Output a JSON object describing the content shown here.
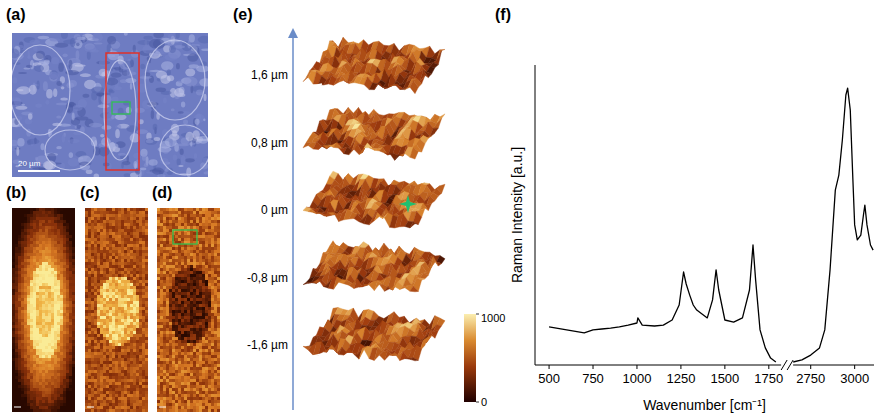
{
  "figure": {
    "panel_labels": [
      "(a)",
      "(b)",
      "(c)",
      "(d)",
      "(e)",
      "(f)"
    ],
    "scale_bar": "20 µm",
    "depth_labels": [
      {
        "value": 1.6,
        "label": "1,6  µm"
      },
      {
        "value": 0.8,
        "label": "0,8  µm"
      },
      {
        "value": 0,
        "label": "0  µm"
      },
      {
        "value": -0.8,
        "label": "-0,8  µm"
      },
      {
        "value": -1.6,
        "label": "-1,6  µm"
      }
    ],
    "colorbar": {
      "range": [
        0,
        1000
      ],
      "ticks": [
        0,
        1000
      ]
    }
  },
  "chart_data": {
    "type": "line",
    "xlabel": "Wavenumber [cm⁻¹]",
    "ylabel": "Raman Intensity [a.u.]",
    "x": [
      500,
      600,
      700,
      750,
      800,
      850,
      900,
      950,
      1000,
      1005,
      1030,
      1100,
      1150,
      1200,
      1240,
      1265,
      1280,
      1300,
      1320,
      1340,
      1400,
      1430,
      1450,
      1465,
      1500,
      1550,
      1600,
      1640,
      1660,
      1675,
      1700,
      1730,
      1760,
      1790,
      2650,
      2700,
      2750,
      2800,
      2830,
      2860,
      2890,
      2910,
      2930,
      2950,
      2960,
      2975,
      2990,
      3000,
      3015,
      3035,
      3050,
      3058,
      3070,
      3090,
      3105
    ],
    "values": [
      12.7,
      11.7,
      10.7,
      11.7,
      12,
      12.3,
      12.7,
      13.3,
      14,
      15.7,
      13.3,
      13,
      13.3,
      15,
      20,
      31,
      27,
      23.3,
      20,
      18.3,
      15.7,
      21.7,
      31.7,
      25,
      15,
      14.3,
      15.7,
      25,
      40,
      28.3,
      11.7,
      5.7,
      2.3,
      1,
      1,
      1.7,
      3.3,
      5.7,
      11.7,
      31.7,
      58.3,
      63.3,
      75,
      90,
      92.3,
      85,
      61.7,
      46.7,
      41.7,
      43.3,
      50,
      53.3,
      46.7,
      40,
      38.3
    ],
    "xlim": [
      [
        420,
        1820
      ],
      [
        2650,
        3110
      ]
    ],
    "xticks": [
      500,
      750,
      1000,
      1250,
      1500,
      1750,
      2750,
      3000
    ],
    "ylim": [
      0,
      100
    ],
    "tick_labels": "x",
    "color": "#000000"
  }
}
